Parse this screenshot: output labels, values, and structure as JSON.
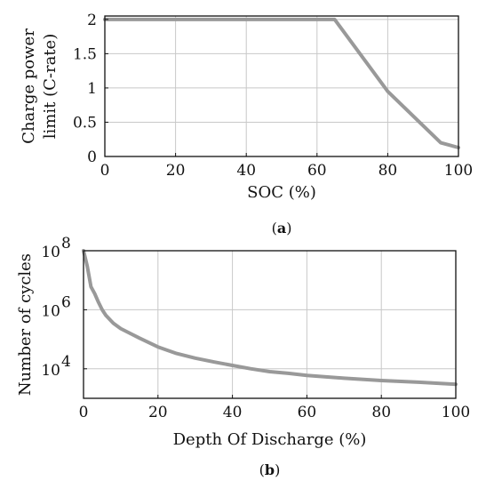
{
  "chart_data": [
    {
      "type": "line",
      "xlabel": "SOC (%)",
      "ylabel_lines": [
        "Charge power",
        "limit (C-rate)"
      ],
      "xlim": [
        0,
        100
      ],
      "ylim": [
        0,
        2.05
      ],
      "xticks": [
        0,
        20,
        40,
        60,
        80,
        100
      ],
      "xtick_labels": [
        "0",
        "20",
        "40",
        "60",
        "80",
        "100"
      ],
      "yticks": [
        0,
        0.5,
        1,
        1.5,
        2
      ],
      "ytick_labels": [
        "0",
        "0.5",
        "1",
        "1.5",
        "2"
      ],
      "grid": true,
      "log_y": false,
      "series_color": "#999999",
      "series": [
        {
          "x": [
            0,
            65,
            80,
            95,
            100
          ],
          "y": [
            2,
            2,
            0.95,
            0.2,
            0.13
          ]
        }
      ],
      "caption": "a"
    },
    {
      "type": "line",
      "xlabel": "Depth Of Discharge (%)",
      "ylabel": "Number of cycles",
      "xlim": [
        0,
        100
      ],
      "ylim": [
        1000,
        100000000
      ],
      "xticks": [
        0,
        20,
        40,
        60,
        80,
        100
      ],
      "xtick_labels": [
        "0",
        "20",
        "40",
        "60",
        "80",
        "100"
      ],
      "yticks": [
        10000,
        1000000,
        100000000
      ],
      "ytick_labels": [
        {
          "base": "10",
          "exp": "4"
        },
        {
          "base": "10",
          "exp": "6"
        },
        {
          "base": "10",
          "exp": "8"
        }
      ],
      "grid": true,
      "log_y": true,
      "series_color": "#999999",
      "series": [
        {
          "x": [
            0,
            1,
            2,
            3,
            4,
            5,
            6,
            8,
            10,
            12,
            15,
            20,
            25,
            30,
            35,
            40,
            45,
            50,
            55,
            60,
            70,
            80,
            90,
            100
          ],
          "y": [
            100000000,
            30000000,
            6000000,
            3500000,
            1800000,
            1000000,
            650000,
            350000,
            230000,
            170000,
            110000,
            55000,
            33000,
            23000,
            17000,
            13000,
            10000,
            8000,
            7000,
            6000,
            4800,
            4000,
            3500,
            3000
          ]
        }
      ],
      "caption": "b"
    }
  ]
}
